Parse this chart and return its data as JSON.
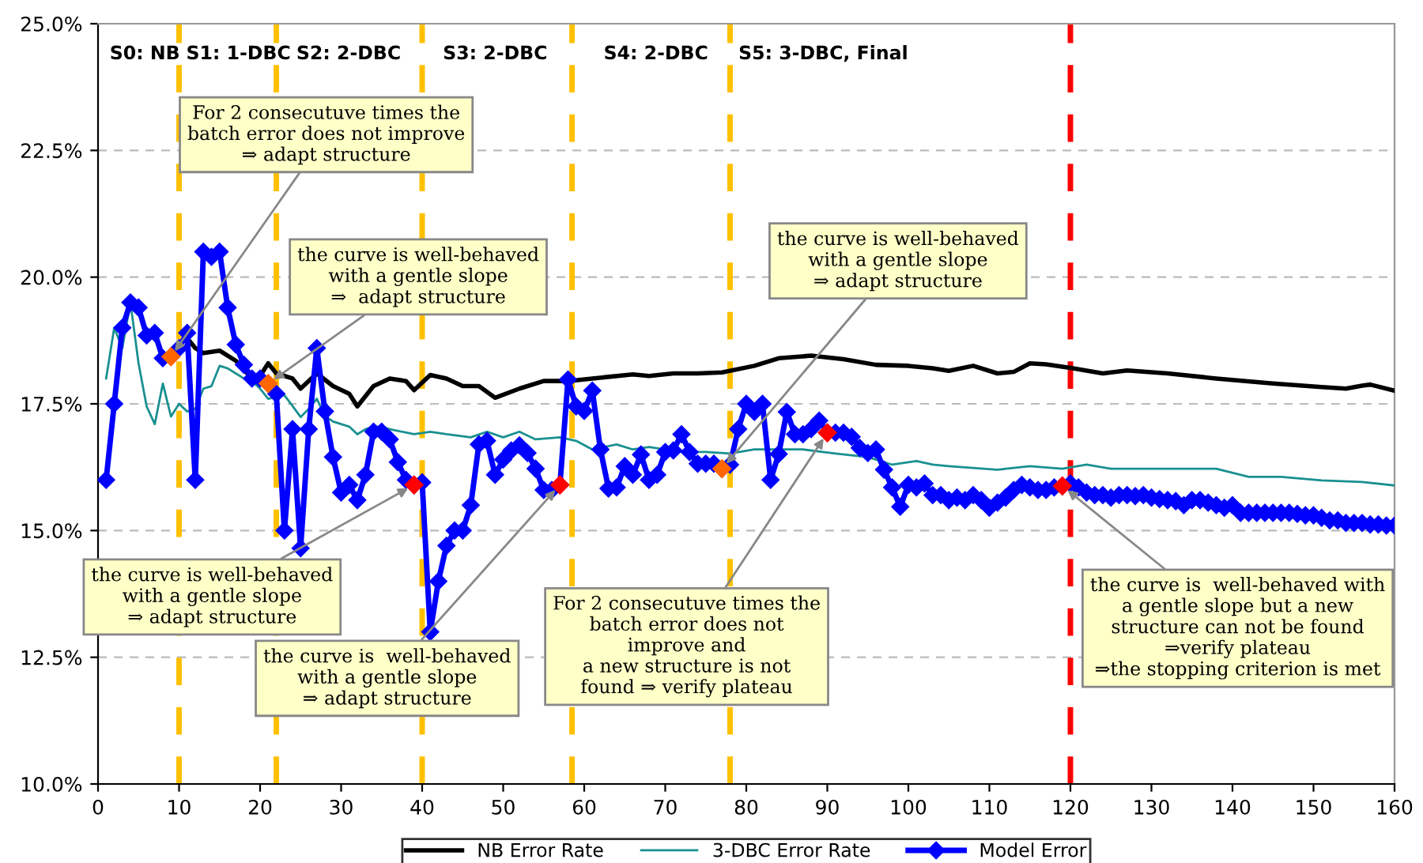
{
  "chart_data": {
    "type": "line",
    "xlim": [
      0,
      160
    ],
    "xticks": [
      0,
      10,
      20,
      30,
      40,
      50,
      60,
      70,
      80,
      90,
      100,
      110,
      120,
      130,
      140,
      150,
      160
    ],
    "ylim": [
      10,
      25
    ],
    "yticks": [
      {
        "value": 10,
        "label": "10.0%"
      },
      {
        "value": 12.5,
        "label": "12.5%"
      },
      {
        "value": 15,
        "label": "15.0%"
      },
      {
        "value": 17.5,
        "label": "17.5%"
      },
      {
        "value": 20,
        "label": "20.0%"
      },
      {
        "value": 22.5,
        "label": "22.5%"
      },
      {
        "value": 25,
        "label": "25.0%"
      }
    ],
    "grid": "y",
    "legend": "bottom",
    "series": [
      {
        "name": "NB Error Rate",
        "color": "#000000",
        "marker": "none",
        "x": [
          10,
          11,
          12,
          13,
          15,
          17,
          19,
          20,
          21,
          22,
          24,
          25,
          27,
          29,
          31,
          32,
          34,
          36,
          38,
          39,
          41,
          43,
          45,
          47,
          49,
          52,
          55,
          58,
          61,
          66,
          68,
          71,
          74,
          77,
          81,
          84,
          88,
          92,
          96,
          100,
          103,
          105,
          108,
          111,
          113,
          115,
          117,
          120,
          124,
          127,
          132,
          138,
          145,
          151,
          154,
          156,
          157,
          160
        ],
        "values": [
          18.7,
          18.8,
          18.6,
          18.5,
          18.55,
          18.35,
          18.0,
          18.05,
          18.3,
          18.1,
          18.0,
          17.8,
          18.1,
          17.85,
          17.7,
          17.45,
          17.85,
          18.0,
          17.95,
          17.77,
          18.07,
          18.0,
          17.85,
          17.85,
          17.62,
          17.8,
          17.95,
          17.95,
          18.0,
          18.08,
          18.05,
          18.1,
          18.1,
          18.12,
          18.25,
          18.4,
          18.45,
          18.38,
          18.27,
          18.25,
          18.2,
          18.15,
          18.25,
          18.1,
          18.13,
          18.3,
          18.28,
          18.21,
          18.1,
          18.16,
          18.1,
          18.0,
          17.9,
          17.83,
          17.8,
          17.86,
          17.88,
          17.76
        ]
      },
      {
        "name": "3-DBC Error Rate",
        "color": "#1a9090",
        "marker": "none",
        "x": [
          1,
          2,
          3,
          4,
          5,
          6,
          7,
          8,
          9,
          10,
          11,
          12,
          13,
          14,
          15,
          16,
          17,
          18,
          19,
          20,
          21,
          23,
          24,
          25,
          26,
          27,
          28,
          29,
          31,
          32,
          33,
          34,
          35,
          36,
          39,
          41,
          43,
          46,
          48,
          50,
          52,
          54,
          57,
          59,
          61,
          64,
          66,
          68,
          72,
          75,
          78,
          81,
          83,
          87,
          91,
          95,
          98,
          101,
          103,
          105,
          111,
          115,
          119,
          122,
          125,
          132,
          138,
          142,
          146,
          151,
          156,
          160
        ],
        "values": [
          18.0,
          19.0,
          18.6,
          19.5,
          18.3,
          17.45,
          17.1,
          17.9,
          17.25,
          17.5,
          17.35,
          17.4,
          17.8,
          17.85,
          18.25,
          18.2,
          18.1,
          18.0,
          17.95,
          17.8,
          17.6,
          17.67,
          17.46,
          17.24,
          17.4,
          17.6,
          17.26,
          17.15,
          17.05,
          16.9,
          17.0,
          17.05,
          17.05,
          17.0,
          16.9,
          16.95,
          16.9,
          16.84,
          16.95,
          16.84,
          16.95,
          16.8,
          16.84,
          16.77,
          16.6,
          16.7,
          16.6,
          16.65,
          16.55,
          16.55,
          16.52,
          16.6,
          16.6,
          16.6,
          16.52,
          16.45,
          16.3,
          16.37,
          16.3,
          16.27,
          16.2,
          16.27,
          16.22,
          16.3,
          16.22,
          16.22,
          16.22,
          16.06,
          16.06,
          15.99,
          15.96,
          15.89
        ]
      },
      {
        "name": "Model Error",
        "color": "#0000ff",
        "marker": "diamond",
        "x": [
          1,
          2,
          3,
          4,
          5,
          6,
          7,
          8,
          9,
          10,
          11,
          12,
          13,
          14,
          15,
          16,
          17,
          18,
          19,
          20,
          21,
          22,
          23,
          24,
          25,
          26,
          27,
          28,
          29,
          30,
          31,
          32,
          33,
          34,
          35,
          36,
          37,
          38,
          39,
          40,
          41,
          42,
          43,
          44,
          45,
          46,
          47,
          48,
          49,
          50,
          51,
          52,
          53,
          54,
          55,
          56,
          57,
          58,
          59,
          60,
          61,
          62,
          63,
          64,
          65,
          66,
          67,
          68,
          69,
          70,
          71,
          72,
          73,
          74,
          75,
          76,
          77,
          78,
          79,
          80,
          81,
          82,
          83,
          84,
          85,
          86,
          87,
          88,
          89,
          90,
          91,
          92,
          93,
          94,
          95,
          96,
          97,
          98,
          99,
          100,
          101,
          102,
          103,
          104,
          105,
          106,
          107,
          108,
          109,
          110,
          111,
          112,
          113,
          114,
          115,
          116,
          117,
          118,
          119,
          120,
          121,
          122,
          123,
          124,
          125,
          126,
          127,
          128,
          129,
          130,
          131,
          132,
          133,
          134,
          135,
          136,
          137,
          138,
          139,
          140,
          141,
          142,
          143,
          144,
          145,
          146,
          147,
          148,
          149,
          150,
          151,
          152,
          153,
          154,
          155,
          156,
          157,
          158,
          159,
          160
        ],
        "values": [
          16.0,
          17.5,
          19.0,
          19.5,
          19.4,
          18.85,
          18.9,
          18.4,
          18.43,
          18.6,
          18.9,
          16.0,
          20.5,
          20.4,
          20.5,
          19.4,
          18.67,
          18.27,
          18.0,
          18.0,
          17.9,
          17.7,
          15.0,
          17.0,
          14.65,
          17.0,
          18.6,
          17.35,
          16.45,
          15.75,
          15.9,
          15.6,
          16.1,
          16.95,
          16.95,
          16.8,
          16.35,
          16.0,
          15.9,
          15.95,
          13.0,
          14.0,
          14.7,
          15.0,
          15.0,
          15.5,
          16.7,
          16.77,
          16.1,
          16.4,
          16.58,
          16.68,
          16.53,
          16.22,
          15.8,
          15.8,
          15.9,
          17.98,
          17.45,
          17.36,
          17.76,
          16.6,
          15.83,
          15.85,
          16.27,
          16.1,
          16.5,
          16.0,
          16.1,
          16.55,
          16.58,
          16.9,
          16.55,
          16.32,
          16.32,
          16.32,
          16.22,
          16.3,
          17.0,
          17.5,
          17.34,
          17.5,
          16.0,
          16.51,
          17.34,
          16.9,
          16.9,
          17.0,
          17.17,
          16.93,
          16.93,
          16.93,
          16.85,
          16.63,
          16.53,
          16.6,
          16.2,
          15.85,
          15.47,
          15.9,
          15.85,
          15.93,
          15.7,
          15.7,
          15.6,
          15.65,
          15.6,
          15.7,
          15.6,
          15.45,
          15.55,
          15.65,
          15.8,
          15.9,
          15.85,
          15.8,
          15.8,
          15.85,
          15.88,
          15.93,
          15.85,
          15.75,
          15.7,
          15.7,
          15.65,
          15.7,
          15.7,
          15.68,
          15.7,
          15.65,
          15.62,
          15.6,
          15.58,
          15.5,
          15.6,
          15.6,
          15.55,
          15.5,
          15.45,
          15.5,
          15.35,
          15.35,
          15.35,
          15.35,
          15.35,
          15.35,
          15.35,
          15.33,
          15.3,
          15.3,
          15.25,
          15.2,
          15.2,
          15.15,
          15.15,
          15.15,
          15.12,
          15.12,
          15.1,
          15.1
        ]
      },
      {
        "type": "scatter",
        "marker": "diamond",
        "x": [
          9,
          21,
          39,
          57,
          77,
          90,
          119
        ],
        "values": [
          18.43,
          17.9,
          15.9,
          15.9,
          16.22,
          16.93,
          15.88
        ],
        "colors": [
          "#ff6600",
          "#ff6600",
          "#ff0000",
          "#ff0000",
          "#ff6600",
          "#ff0000",
          "#ff0000"
        ]
      }
    ],
    "ref_lines": [
      {
        "axis": "x",
        "value": 10,
        "color": "#ffc000",
        "line_style": "dashed"
      },
      {
        "axis": "x",
        "value": 22,
        "color": "#ffc000",
        "line_style": "dashed"
      },
      {
        "axis": "x",
        "value": 40,
        "color": "#ffc000",
        "line_style": "dashed"
      },
      {
        "axis": "x",
        "value": 58.5,
        "color": "#ffc000",
        "line_style": "dashed"
      },
      {
        "axis": "x",
        "value": 78,
        "color": "#ffc000",
        "line_style": "dashed"
      },
      {
        "axis": "x",
        "value": 120,
        "color": "#ff0000",
        "line_style": "dashed"
      }
    ],
    "annotations": [
      {
        "text": "For 2 consecutuve times the\nbatch error does not improve\n⇒ adapt structure",
        "x": 9,
        "y": 18.43
      },
      {
        "text": "the curve is well-behaved\nwith a gentle slope\n⇒  adapt structure",
        "x": 21,
        "y": 17.9
      },
      {
        "text": "the curve is well-behaved\nwith a gentle slope\n⇒ adapt structure",
        "x": 39,
        "y": 15.9
      },
      {
        "text": "the curve is  well-behaved\nwith a gentle slope\n⇒ adapt structure",
        "x": 57,
        "y": 15.9
      },
      {
        "text": "the curve is well-behaved\nwith a gentle slope\n⇒ adapt structure",
        "x": 77,
        "y": 16.22
      },
      {
        "text": "For 2 consecutuve times the\nbatch error does not\nimprove and\na new structure is not\nfound ⇒ verify plateau",
        "x": 90,
        "y": 16.93
      },
      {
        "text": "the curve is  well-behaved with\na gentle slope but a new\nstructure can not be found\n⇒verify plateau\n⇒the stopping criterion is met",
        "x": 119,
        "y": 15.88
      },
      "S0: NB",
      "S1: 1-DBC",
      "S2: 2-DBC",
      "S3: 2-DBC",
      "S4: 2-DBC",
      "S5: 3-DBC, Final"
    ]
  }
}
